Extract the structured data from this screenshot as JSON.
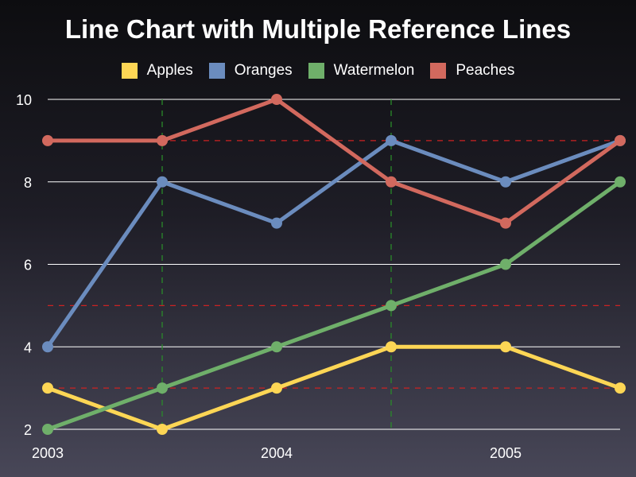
{
  "chart_data": {
    "type": "line",
    "title": "Line Chart with Multiple Reference Lines",
    "xlabel": "",
    "ylabel": "",
    "x": [
      2003.0,
      2003.5,
      2004.0,
      2004.5,
      2005.0,
      2005.5
    ],
    "xlim": [
      2003,
      2005.5
    ],
    "ylim": [
      2,
      10
    ],
    "x_ticks": [
      "2003",
      "2004",
      "2005"
    ],
    "x_tick_values": [
      2003,
      2004,
      2005
    ],
    "y_ticks": [
      "2",
      "4",
      "6",
      "8",
      "10"
    ],
    "y_tick_values": [
      2,
      4,
      6,
      8,
      10
    ],
    "grid": "horizontal",
    "legend_position": "top-center",
    "series": [
      {
        "name": "Apples",
        "color": "#fdd655",
        "values": [
          3,
          2,
          3,
          4,
          4,
          3
        ]
      },
      {
        "name": "Oranges",
        "color": "#6b8cbe",
        "values": [
          4,
          8,
          7,
          9,
          8,
          9
        ]
      },
      {
        "name": "Watermelon",
        "color": "#6faf6a",
        "values": [
          2,
          3,
          4,
          5,
          6,
          8
        ]
      },
      {
        "name": "Peaches",
        "color": "#d2695e",
        "values": [
          9,
          9,
          10,
          8,
          7,
          9
        ]
      }
    ],
    "reference_lines": {
      "horizontal": {
        "values": [
          3,
          5,
          9
        ],
        "color": "#cc2222",
        "style": "dashed"
      },
      "vertical": {
        "values": [
          2003.5,
          2004.5
        ],
        "color": "#2a8a2a",
        "style": "dashed"
      }
    }
  }
}
